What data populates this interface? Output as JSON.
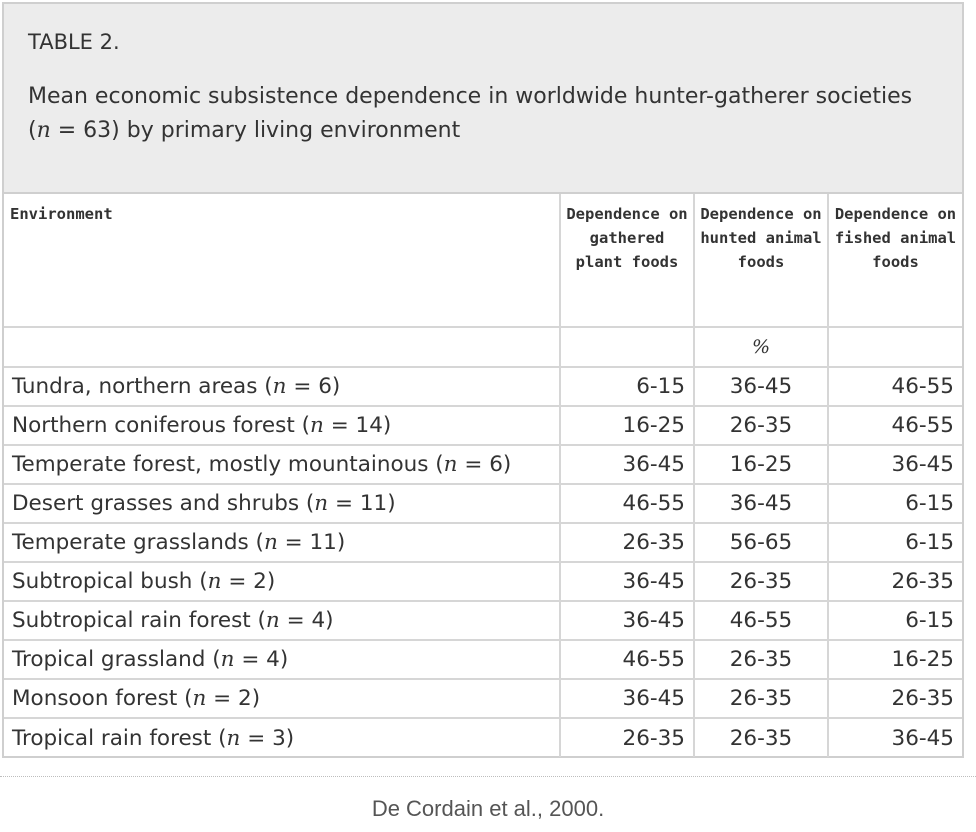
{
  "caption": {
    "label": "TABLE 2.",
    "title_part1": "Mean economic subsistence dependence in worldwide hunter-gatherer societies (",
    "title_n": "n",
    "title_part2": " = 63) by primary living environment"
  },
  "table": {
    "headers": [
      "Environment",
      "Dependence on gathered plant foods",
      "Dependence on hunted animal foods",
      "Dependence on fished animal foods"
    ],
    "unit_row": [
      "",
      "",
      "%",
      ""
    ],
    "rows": [
      {
        "env": "Tundra, northern areas (",
        "n": "n",
        "count": " = 6)",
        "plant": "6-15",
        "hunted": "36-45",
        "fished": "46-55"
      },
      {
        "env": "Northern coniferous forest (",
        "n": "n",
        "count": " = 14)",
        "plant": "16-25",
        "hunted": "26-35",
        "fished": "46-55"
      },
      {
        "env": "Temperate forest, mostly mountainous (",
        "n": "n",
        "count": " = 6)",
        "plant": "36-45",
        "hunted": "16-25",
        "fished": "36-45"
      },
      {
        "env": "Desert grasses and shrubs (",
        "n": "n",
        "count": " = 11)",
        "plant": "46-55",
        "hunted": "36-45",
        "fished": "6-15"
      },
      {
        "env": "Temperate grasslands (",
        "n": "n",
        "count": " = 11)",
        "plant": "26-35",
        "hunted": "56-65",
        "fished": "6-15"
      },
      {
        "env": "Subtropical bush (",
        "n": "n",
        "count": " = 2)",
        "plant": "36-45",
        "hunted": "26-35",
        "fished": "26-35"
      },
      {
        "env": "Subtropical rain forest (",
        "n": "n",
        "count": " = 4)",
        "plant": "36-45",
        "hunted": "46-55",
        "fished": "6-15"
      },
      {
        "env": "Tropical grassland (",
        "n": "n",
        "count": " = 4)",
        "plant": "46-55",
        "hunted": "26-35",
        "fished": "16-25"
      },
      {
        "env": "Monsoon forest (",
        "n": "n",
        "count": " = 2)",
        "plant": "36-45",
        "hunted": "26-35",
        "fished": "26-35"
      },
      {
        "env": "Tropical rain forest (",
        "n": "n",
        "count": " = 3)",
        "plant": "26-35",
        "hunted": "26-35",
        "fished": "36-45"
      }
    ]
  },
  "source": "De Cordain et al., 2000."
}
